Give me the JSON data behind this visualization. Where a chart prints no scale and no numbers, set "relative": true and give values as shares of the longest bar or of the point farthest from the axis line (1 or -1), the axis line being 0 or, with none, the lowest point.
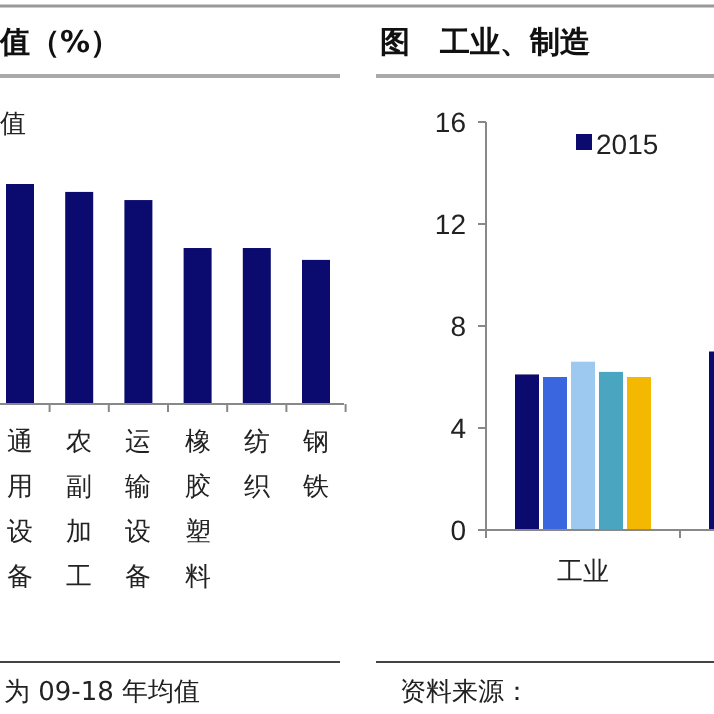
{
  "chart_data": [
    {
      "type": "bar",
      "title": "值（%）",
      "relative": true,
      "categories": [
        "通用设备",
        "农副加工",
        "运输设备",
        "橡胶塑料",
        "纺织",
        "钢铁"
      ],
      "values": [
        1,
        0.964,
        0.927,
        0.709,
        0.709,
        0.655
      ],
      "color": "#0b0b6f",
      "annotations": [
        "值",
        "为 09-18 年均值"
      ]
    },
    {
      "type": "bar",
      "title": "图　工业、制造",
      "categories": [
        "工业",
        null
      ],
      "ylim": [
        0,
        16
      ],
      "yticks": [
        0,
        4,
        8,
        12,
        16
      ],
      "legend": "top left",
      "annotations": [
        "资料来源："
      ],
      "series": [
        {
          "name": "2015",
          "color": "#0b0b6f",
          "values": [
            6.1,
            7.0
          ]
        },
        {
          "color": "#3a66e0",
          "values": [
            6.0,
            null
          ]
        },
        {
          "color": "#9dc8f0",
          "values": [
            6.6,
            null
          ]
        },
        {
          "color": "#4aa6c0",
          "values": [
            6.2,
            null
          ]
        },
        {
          "color": "#f5b800",
          "values": [
            6.0,
            null
          ]
        }
      ]
    }
  ]
}
